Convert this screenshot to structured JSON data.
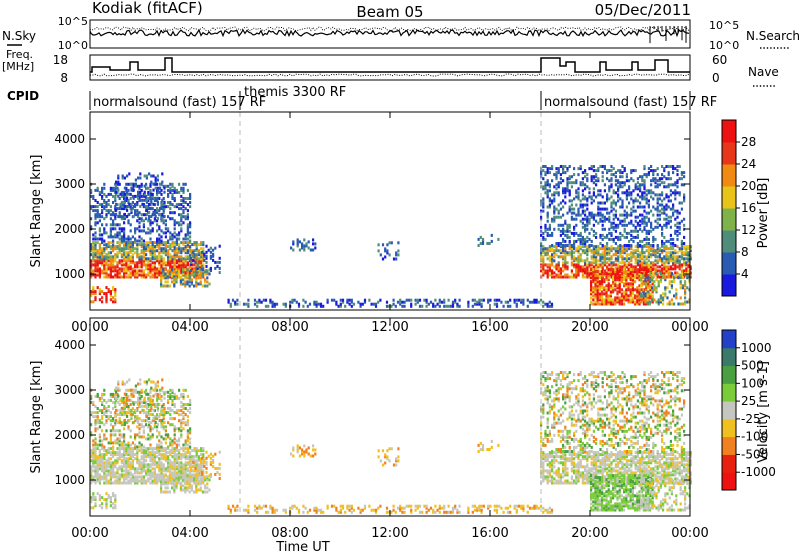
{
  "header": {
    "station": "Kodiak (fitACF)",
    "beam": "Beam 05",
    "date": "05/Dec/2011"
  },
  "strips": {
    "nsky_label": "N.Sky",
    "nsky_ticks": [
      "10^5",
      "10^0"
    ],
    "nsearch_label": "N.Search",
    "nsearch_ticks": [
      "10^5",
      "10^0"
    ],
    "freq_label_1": "Freq.",
    "freq_label_2": "[MHz]",
    "freq_ticks": [
      "18",
      "8"
    ],
    "nave_label": "Nave",
    "nave_ticks": [
      "60",
      "0"
    ],
    "cpid_label": "CPID",
    "cpid_segments": [
      "normalsound (fast) 157 RF",
      "themis 3300 RF",
      "normalsound (fast) 157 RF"
    ]
  },
  "chart_data": [
    {
      "type": "heatmap",
      "title": "",
      "ylabel": "Slant Range [km]",
      "xlabel": "",
      "ylim": [
        200,
        4600
      ],
      "yticks": [
        "1000",
        "2000",
        "3000",
        "4000"
      ],
      "colorbar": {
        "label": "Power [dB]",
        "ticks": [
          "4",
          "8",
          "12",
          "16",
          "20",
          "24",
          "28"
        ],
        "colors": [
          "#1a1adf",
          "#2a5bb3",
          "#4f8d7a",
          "#7fb34a",
          "#e8c41a",
          "#f08a12",
          "#e8361a",
          "#ee1111"
        ]
      }
    },
    {
      "type": "heatmap",
      "title": "",
      "ylabel": "Slant Range [km]",
      "xlabel": "Time UT",
      "ylim": [
        200,
        4600
      ],
      "yticks": [
        "1000",
        "2000",
        "3000",
        "4000"
      ],
      "xticks": [
        "00:00",
        "04:00",
        "08:00",
        "12:00",
        "16:00",
        "20:00",
        "00:00"
      ],
      "colorbar": {
        "label": "Velocity [m s-1]",
        "ticks": [
          "1000",
          "500",
          "100",
          "25",
          "-25",
          "-100",
          "-500",
          "-1000"
        ],
        "colors": [
          "#2340c8",
          "#3a7a6a",
          "#4aa040",
          "#7acc3a",
          "#c6c6c0",
          "#f0c020",
          "#f08020",
          "#e82010",
          "#ee1111"
        ]
      }
    }
  ]
}
